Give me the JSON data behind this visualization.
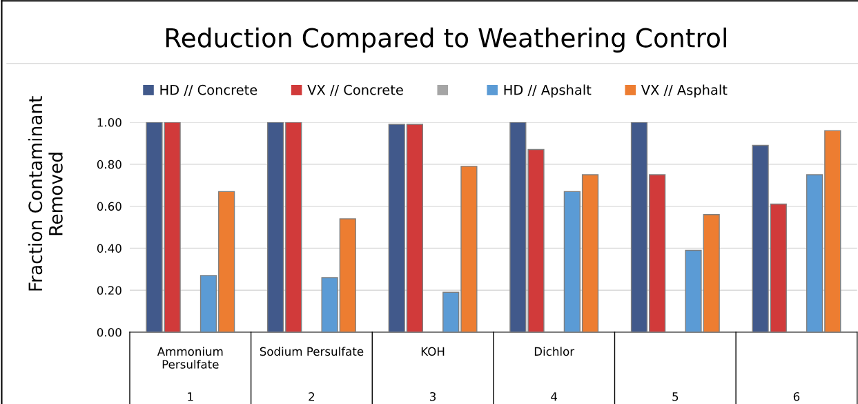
{
  "chart_data": {
    "type": "bar",
    "title": "Reduction Compared to Weathering Control",
    "ylabel": "Fraction Contaminant\nRemoved",
    "categories": [
      "Ammonium\nPersulfate\n1",
      "Sodium Persulfate\n2",
      "KOH\n3",
      "Dichlor\n4",
      "\n5",
      "\n6"
    ],
    "series": [
      {
        "name": "HD // Concrete",
        "color": "#41598b",
        "values": [
          1.0,
          1.0,
          0.99,
          1.0,
          1.0,
          0.89
        ]
      },
      {
        "name": "VX // Concrete",
        "color": "#d13a3a",
        "values": [
          1.0,
          1.0,
          0.99,
          0.87,
          0.75,
          0.61
        ]
      },
      {
        "color": "#a5a5a5",
        "values": [
          null,
          null,
          null,
          null,
          null,
          null
        ]
      },
      {
        "name": "HD // Apshalt",
        "color": "#5b9bd5",
        "values": [
          0.27,
          0.26,
          0.19,
          0.67,
          0.39,
          0.75
        ]
      },
      {
        "name": "VX // Asphalt",
        "color": "#ed7d31",
        "values": [
          0.67,
          0.54,
          0.79,
          0.75,
          0.56,
          0.96
        ]
      }
    ],
    "ylim": [
      0,
      1.0
    ],
    "yticks": [
      {
        "value": 0,
        "label": "0.00"
      },
      {
        "value": 0.2,
        "label": "0.20"
      },
      {
        "value": 0.4,
        "label": "0.40"
      },
      {
        "value": 0.6,
        "label": "0.60"
      },
      {
        "value": 0.8,
        "label": "0.80"
      },
      {
        "value": 1.0,
        "label": "1.00"
      }
    ],
    "grid": "y",
    "legend": "top"
  }
}
